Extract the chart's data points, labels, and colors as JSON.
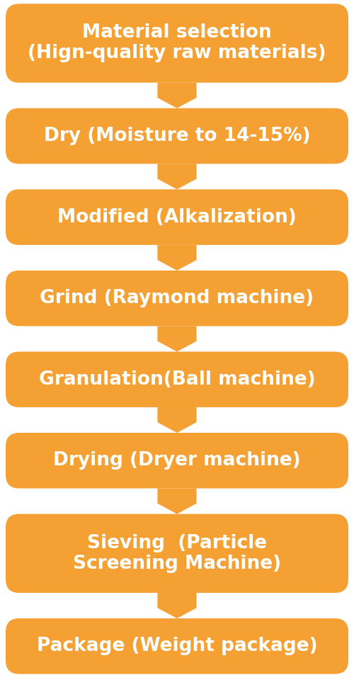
{
  "background_color": "#ffffff",
  "box_color": "#F5A033",
  "text_color": "#ffffff",
  "arrow_color": "#F5A033",
  "steps": [
    "Material selection\n(Hign-quality raw materials)",
    "Dry (Moisture to 14-15%)",
    "Modified (Alkalization)",
    "Grind (Raymond machine)",
    "Granulation(Ball machine)",
    "Drying (Dryer machine)",
    "Sieving  (Particle\nScreening Machine)",
    "Package (Weight package)"
  ],
  "fig_width": 5.0,
  "fig_height": 9.6,
  "dpi": 100,
  "font_size": 19,
  "box_color_first": "#F5A033"
}
